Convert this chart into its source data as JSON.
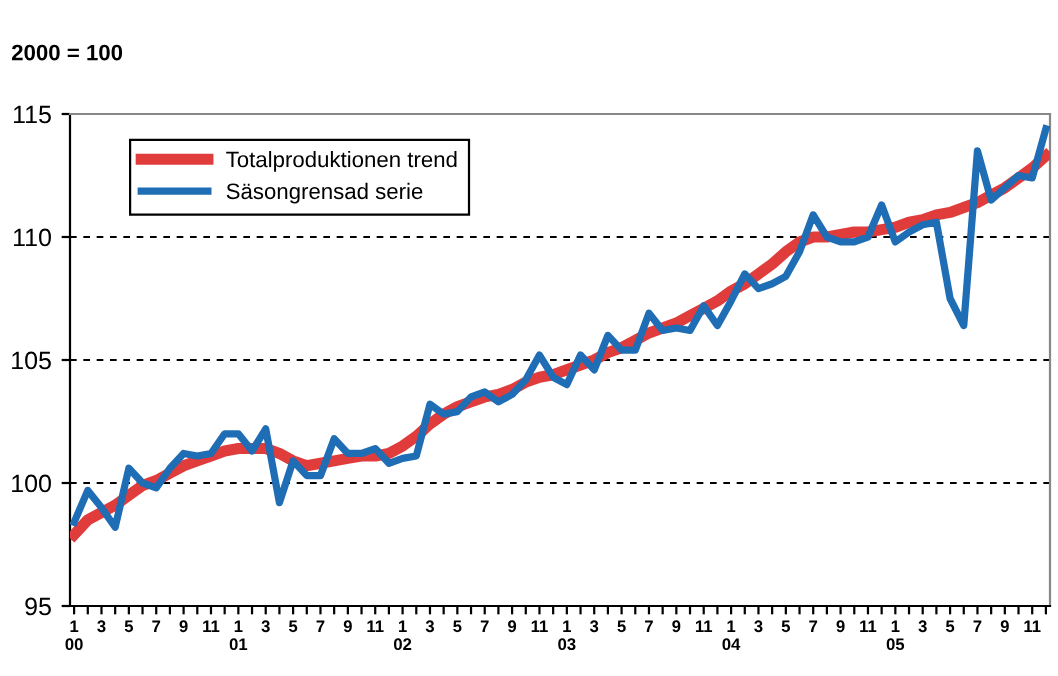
{
  "chart_data": {
    "type": "line",
    "ylabel": "2000 = 100",
    "categories": [
      "1\n00",
      null,
      "3",
      null,
      "5",
      null,
      "7",
      null,
      "9",
      null,
      "11",
      null,
      "1\n01",
      null,
      "3",
      null,
      "5",
      null,
      "7",
      null,
      "9",
      null,
      "11",
      null,
      "1\n02",
      null,
      "3",
      null,
      "5",
      null,
      "7",
      null,
      "9",
      null,
      "11",
      null,
      "1\n03",
      null,
      "3",
      null,
      "5",
      null,
      "7",
      null,
      "9",
      null,
      "11",
      null,
      "1\n04",
      null,
      "3",
      null,
      "5",
      null,
      "7",
      null,
      "9",
      null,
      "11",
      null,
      "1\n05",
      null,
      "3",
      null,
      "5",
      null,
      "7",
      null,
      "9",
      null,
      "11",
      null
    ],
    "series": [
      {
        "name": "Totalproduktionen trend",
        "color": "#e03c3c",
        "values": [
          97.9,
          98.5,
          98.8,
          99.1,
          99.5,
          99.9,
          100.1,
          100.4,
          100.7,
          100.9,
          101.1,
          101.3,
          101.4,
          101.4,
          101.4,
          101.2,
          100.9,
          100.7,
          100.8,
          100.9,
          101.0,
          101.1,
          101.1,
          101.2,
          101.5,
          101.9,
          102.4,
          102.8,
          103.1,
          103.3,
          103.5,
          103.6,
          103.8,
          104.1,
          104.3,
          104.4,
          104.6,
          104.8,
          105.0,
          105.3,
          105.5,
          105.8,
          106.1,
          106.3,
          106.5,
          106.8,
          107.1,
          107.4,
          107.8,
          108.1,
          108.5,
          108.9,
          109.4,
          109.8,
          110.0,
          110.0,
          110.1,
          110.2,
          110.2,
          110.3,
          110.4,
          110.6,
          110.7,
          110.9,
          111.0,
          111.2,
          111.4,
          111.7,
          112.0,
          112.4,
          112.8,
          113.3
        ]
      },
      {
        "name": "Säsongrensad serie",
        "color": "#1f6db5",
        "values": [
          98.4,
          99.7,
          99.0,
          98.2,
          100.6,
          100.0,
          99.8,
          100.6,
          101.2,
          101.1,
          101.2,
          102.0,
          102.0,
          101.3,
          102.2,
          99.2,
          100.9,
          100.3,
          100.3,
          101.8,
          101.2,
          101.2,
          101.4,
          100.8,
          101.0,
          101.1,
          103.2,
          102.8,
          102.9,
          103.5,
          103.7,
          103.3,
          103.6,
          104.2,
          105.2,
          104.3,
          104.0,
          105.2,
          104.6,
          106.0,
          105.4,
          105.4,
          106.9,
          106.2,
          106.3,
          106.2,
          107.2,
          106.4,
          107.4,
          108.5,
          107.9,
          108.1,
          108.4,
          109.4,
          110.9,
          110.0,
          109.8,
          109.8,
          110.0,
          111.3,
          109.8,
          110.2,
          110.5,
          110.6,
          107.5,
          106.4,
          113.5,
          111.5,
          112.0,
          112.5,
          112.4,
          114.4
        ]
      }
    ],
    "ylim": [
      95,
      115
    ],
    "yticks": [
      95,
      100,
      105,
      110,
      115
    ],
    "grid": "y",
    "legend": "top left",
    "marker": "none",
    "line_style": "solid"
  }
}
